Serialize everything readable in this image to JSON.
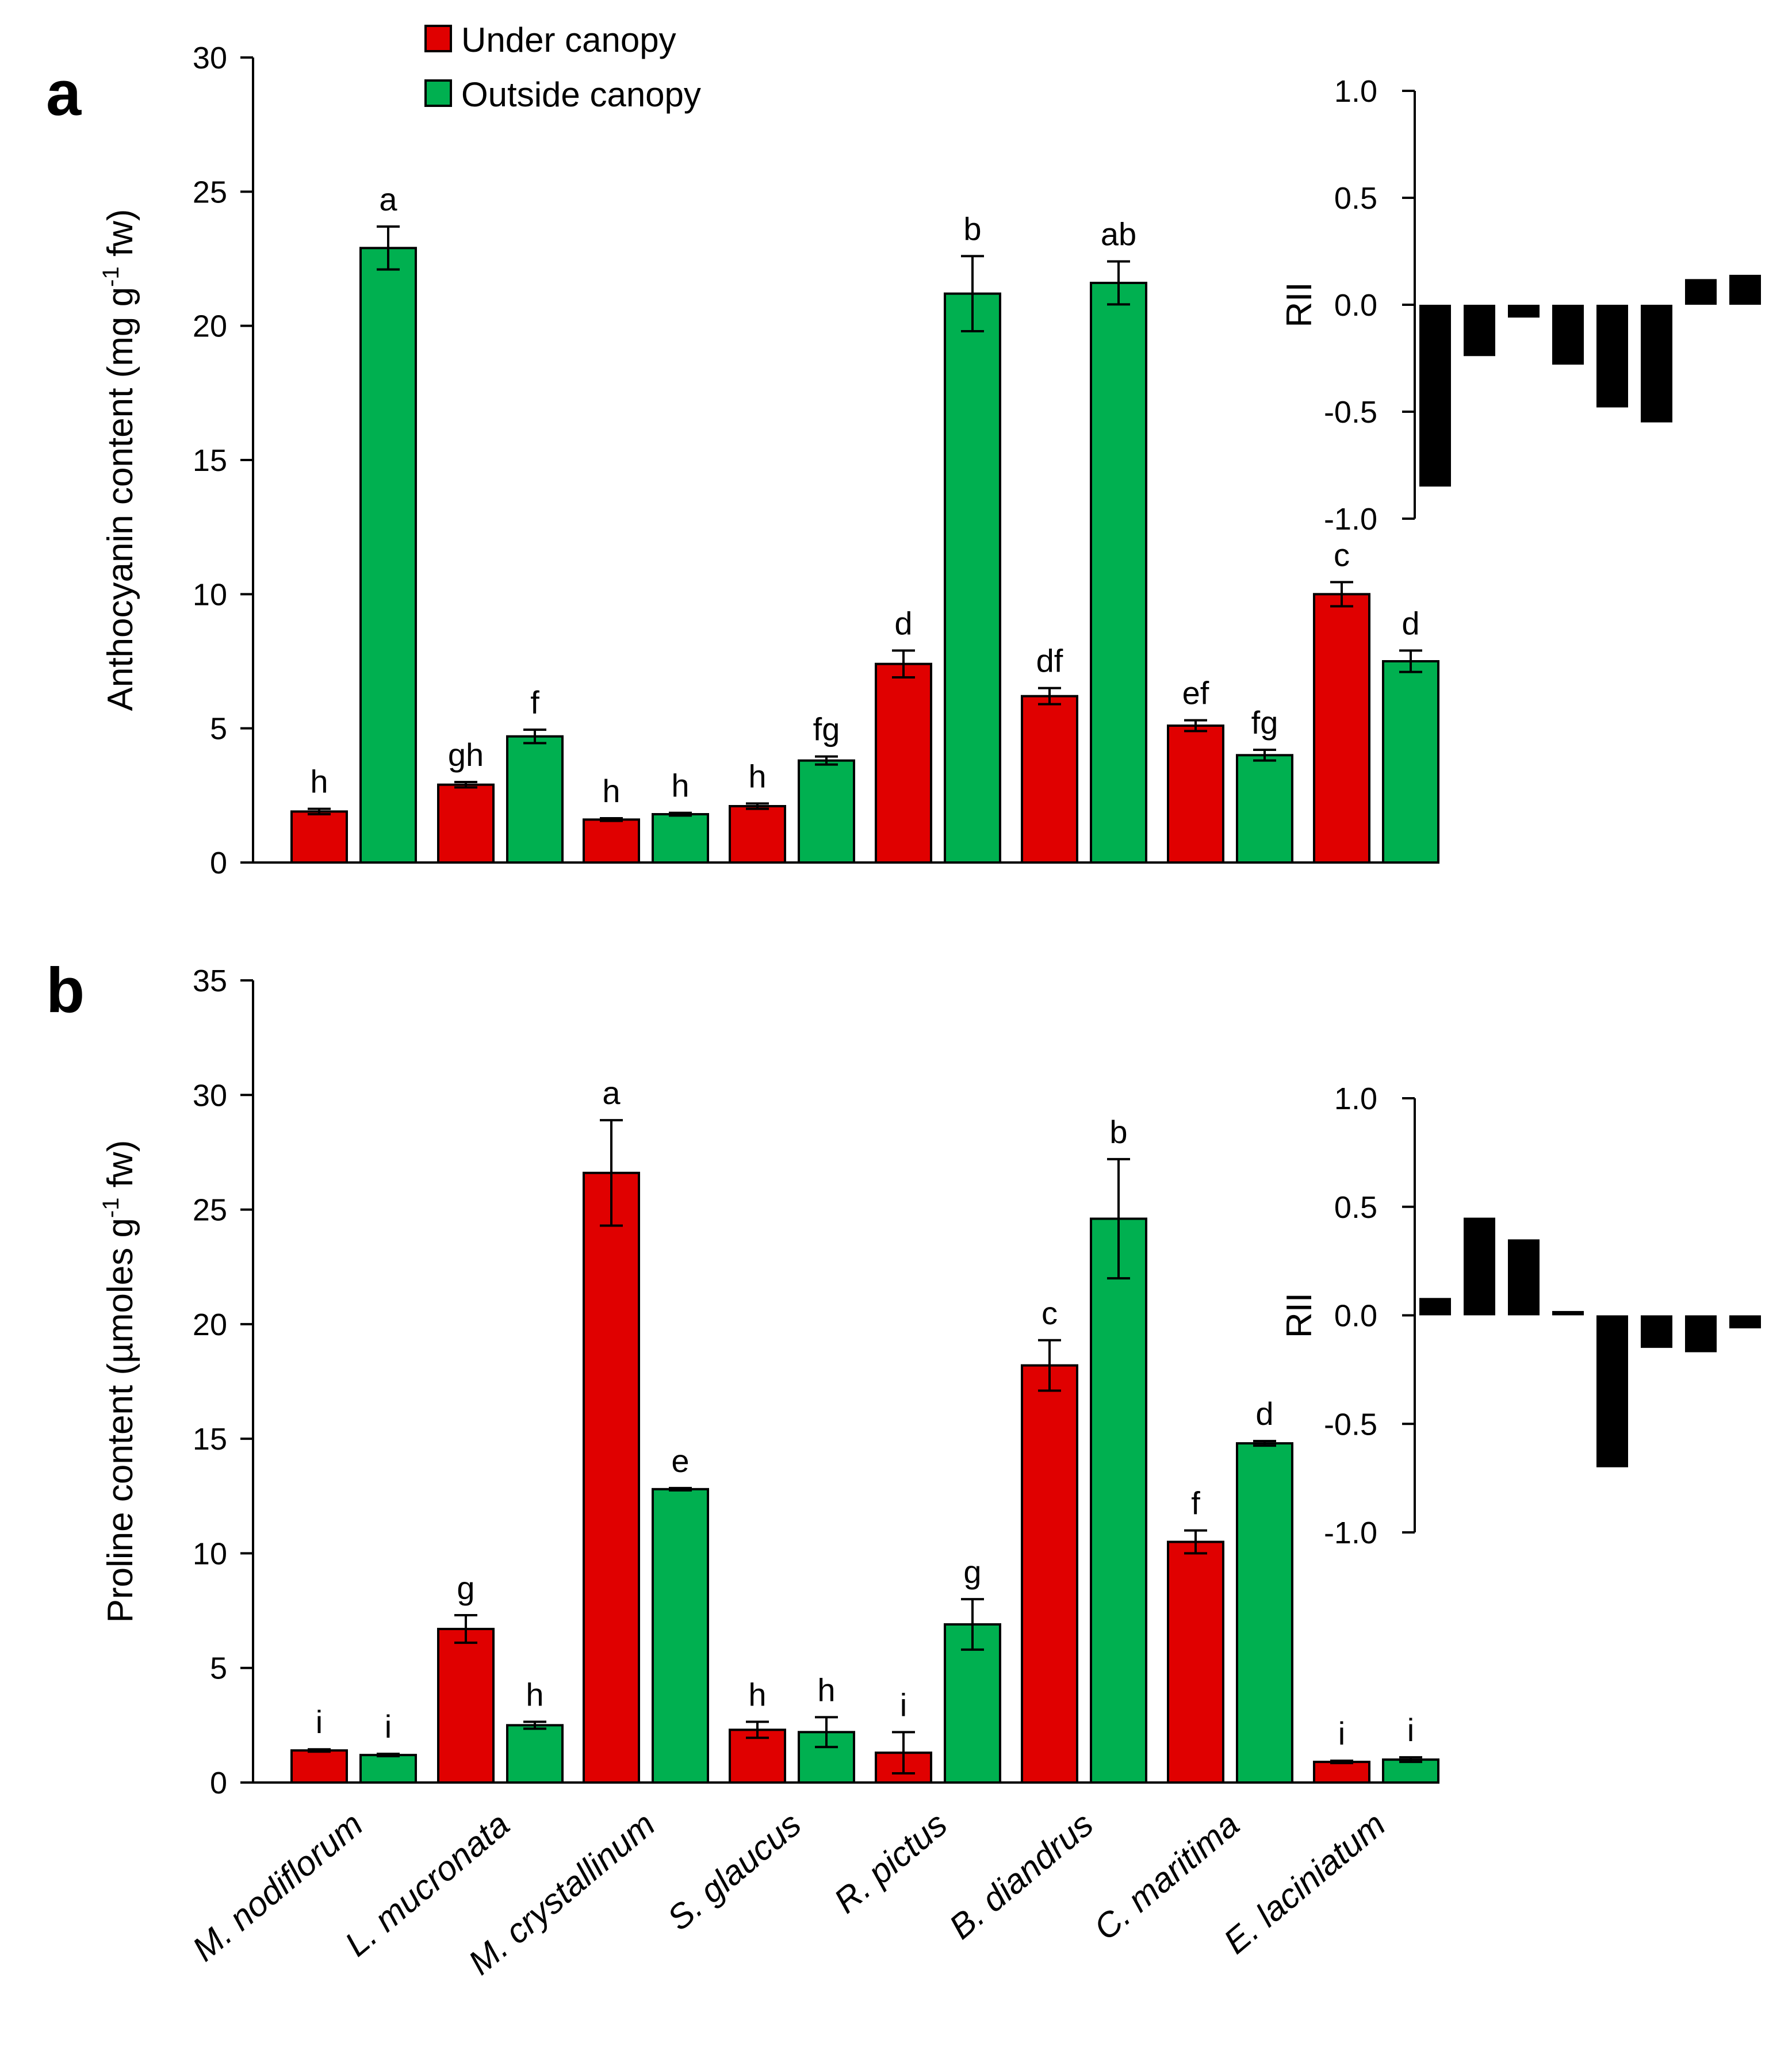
{
  "chart_data": [
    {
      "id": "a",
      "type": "bar",
      "panel_label": "a",
      "ylabel": "Anthocyanin content (mg  g-1 fw)",
      "ylabel_parts": [
        "Anthocyanin content (mg  g",
        "-1",
        " fw)"
      ],
      "ylim": [
        0,
        30
      ],
      "yticks": [
        "0",
        "5",
        "10",
        "15",
        "20",
        "25",
        "30"
      ],
      "categories": [
        "M. nodiflorum",
        "L. mucronata",
        "M. crystallinum",
        "S. glaucus",
        "R. pictus",
        "B. diandrus",
        "C. maritima",
        "E. laciniatum"
      ],
      "legend": [
        "Under canopy",
        "Outside canopy"
      ],
      "series": [
        {
          "name": "Under canopy",
          "color": "#e00000",
          "values": [
            1.9,
            2.9,
            1.6,
            2.1,
            7.4,
            6.2,
            5.1,
            10.0
          ],
          "errors": [
            0.1,
            0.1,
            0.05,
            0.1,
            0.5,
            0.3,
            0.2,
            0.45
          ],
          "letters": [
            "h",
            "gh",
            "h",
            "h",
            "d",
            "df",
            "ef",
            "c"
          ]
        },
        {
          "name": "Outside canopy",
          "color": "#00b050",
          "values": [
            22.9,
            4.7,
            1.8,
            3.8,
            21.2,
            21.6,
            4.0,
            7.5
          ],
          "errors": [
            0.8,
            0.25,
            0.05,
            0.15,
            1.4,
            0.8,
            0.2,
            0.4
          ],
          "letters": [
            "a",
            "f",
            "h",
            "fg",
            "b",
            "ab",
            "fg",
            "d"
          ]
        }
      ],
      "inset": {
        "type": "bar",
        "ylabel": "RII",
        "ylim": [
          -1.0,
          1.0
        ],
        "yticks": [
          "-1.0",
          "-0.5",
          "0.0",
          "0.5",
          "1.0"
        ],
        "values": [
          -0.85,
          -0.24,
          -0.06,
          -0.28,
          -0.48,
          -0.55,
          0.12,
          0.14
        ],
        "color": "#000000"
      }
    },
    {
      "id": "b",
      "type": "bar",
      "panel_label": "b",
      "ylabel": "Proline content (µmoles  g-1 fw)",
      "ylabel_parts": [
        "Proline content (µmoles  g",
        "-1",
        " fw)"
      ],
      "ylim": [
        0,
        35
      ],
      "yticks": [
        "0",
        "5",
        "10",
        "15",
        "20",
        "25",
        "30",
        "35"
      ],
      "categories": [
        "M. nodiflorum",
        "L. mucronata",
        "M. crystallinum",
        "S. glaucus",
        "R. pictus",
        "B. diandrus",
        "C. maritima",
        "E. laciniatum"
      ],
      "series": [
        {
          "name": "Under canopy",
          "color": "#e00000",
          "values": [
            1.4,
            6.7,
            26.6,
            2.3,
            1.3,
            18.2,
            10.5,
            0.9
          ],
          "errors": [
            0.05,
            0.6,
            2.3,
            0.35,
            0.9,
            1.1,
            0.5,
            0.05
          ],
          "letters": [
            "i",
            "g",
            "a",
            "h",
            "i",
            "c",
            "f",
            "i"
          ]
        },
        {
          "name": "Outside canopy",
          "color": "#00b050",
          "values": [
            1.2,
            2.5,
            12.8,
            2.2,
            6.9,
            24.6,
            14.8,
            1.0
          ],
          "errors": [
            0.05,
            0.15,
            0.05,
            0.65,
            1.1,
            2.6,
            0.1,
            0.1
          ],
          "letters": [
            "i",
            "h",
            "e",
            "h",
            "g",
            "b",
            "d",
            "i"
          ]
        }
      ],
      "inset": {
        "type": "bar",
        "ylabel": "RII",
        "ylim": [
          -1.0,
          1.0
        ],
        "yticks": [
          "-1.0",
          "-0.5",
          "0.0",
          "0.5",
          "1.0"
        ],
        "values": [
          0.08,
          0.45,
          0.35,
          0.02,
          -0.7,
          -0.15,
          -0.17,
          -0.06
        ],
        "color": "#000000"
      }
    }
  ]
}
